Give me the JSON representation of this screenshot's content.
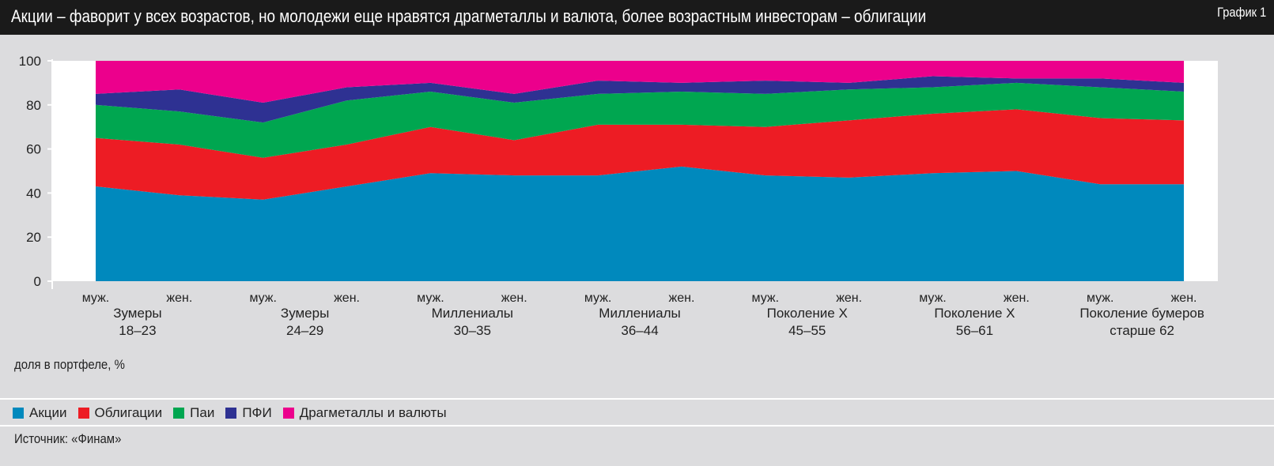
{
  "header": {
    "title": "Акции – фаворит у всех возрастов, но молодежи еще нравятся драгметаллы и валюта, более возрастным инвесторам – облигации",
    "chart_no": "График 1"
  },
  "chart_data": {
    "type": "area",
    "stacked": true,
    "ylabel": "доля в портфеле, %",
    "ylim": [
      0,
      100
    ],
    "yticks": [
      "0",
      "20",
      "40",
      "60",
      "80",
      "100"
    ],
    "x": [
      "муж.",
      "жен.",
      "муж.",
      "жен.",
      "муж.",
      "жен.",
      "муж.",
      "жен.",
      "муж.",
      "жен.",
      "муж.",
      "жен.",
      "муж.",
      "жен."
    ],
    "groups": [
      [
        "Зумеры",
        "18–23"
      ],
      [
        "Зумеры",
        "24–29"
      ],
      [
        "Миллениалы",
        "30–35"
      ],
      [
        "Миллениалы",
        "36–44"
      ],
      [
        "Поколение X",
        "45–55"
      ],
      [
        "Поколение X",
        "56–61"
      ],
      [
        "Поколение бумеров",
        "старше 62"
      ]
    ],
    "series": [
      {
        "name": "Акции",
        "color": "#0089bd",
        "values": [
          43,
          39,
          37,
          43,
          49,
          48,
          48,
          52,
          48,
          47,
          49,
          50,
          44,
          44
        ]
      },
      {
        "name": "Облигации",
        "color": "#ed1c24",
        "values": [
          22,
          23,
          19,
          19,
          21,
          16,
          23,
          19,
          22,
          26,
          27,
          28,
          30,
          29
        ]
      },
      {
        "name": "Паи",
        "color": "#00a650",
        "values": [
          15,
          15,
          16,
          20,
          16,
          17,
          14,
          15,
          15,
          14,
          12,
          12,
          14,
          13
        ]
      },
      {
        "name": "ПФИ",
        "color": "#2e3192",
        "values": [
          5,
          10,
          9,
          6,
          4,
          4,
          6,
          4,
          6,
          3,
          5,
          2,
          4,
          4
        ]
      },
      {
        "name": "Драгметаллы и валюты",
        "color": "#ec008c",
        "values": [
          15,
          13,
          19,
          12,
          10,
          15,
          9,
          10,
          9,
          10,
          7,
          8,
          8,
          10
        ]
      }
    ],
    "legend": "bottom-left",
    "grid": false
  },
  "footer": {
    "source": "Источник: «Финам»"
  }
}
